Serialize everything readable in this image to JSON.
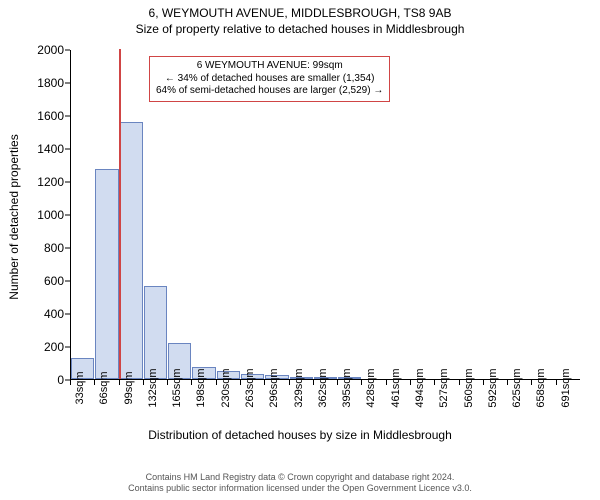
{
  "title_line1": "6, WEYMOUTH AVENUE, MIDDLESBROUGH, TS8 9AB",
  "title_line2": "Size of property relative to detached houses in Middlesbrough",
  "ylabel": "Number of detached properties",
  "xlabel": "Distribution of detached houses by size in Middlesbrough",
  "chart": {
    "type": "histogram",
    "ylim": [
      0,
      2000
    ],
    "ytick_step": 200,
    "bar_fill": "#d1dcf0",
    "bar_stroke": "#6a85c0",
    "highlight_color": "#d04545",
    "background_color": "#ffffff",
    "title_fontsize": 12,
    "label_fontsize": 12,
    "tick_fontsize": 11,
    "categories": [
      "33sqm",
      "66sqm",
      "99sqm",
      "132sqm",
      "165sqm",
      "198sqm",
      "230sqm",
      "263sqm",
      "296sqm",
      "329sqm",
      "362sqm",
      "395sqm",
      "428sqm",
      "461sqm",
      "494sqm",
      "527sqm",
      "560sqm",
      "592sqm",
      "625sqm",
      "658sqm",
      "691sqm"
    ],
    "values": [
      130,
      1270,
      1560,
      565,
      220,
      70,
      50,
      28,
      25,
      15,
      15,
      12,
      0,
      0,
      0,
      0,
      0,
      0,
      0,
      0,
      0
    ],
    "highlight_index": 2
  },
  "callout": {
    "line1": "6 WEYMOUTH AVENUE: 99sqm",
    "line2": "← 34% of detached houses are smaller (1,354)",
    "line3": "64% of semi-detached houses are larger (2,529) →"
  },
  "footer": {
    "line1": "Contains HM Land Registry data © Crown copyright and database right 2024.",
    "line2": "Contains public sector information licensed under the Open Government Licence v3.0."
  }
}
